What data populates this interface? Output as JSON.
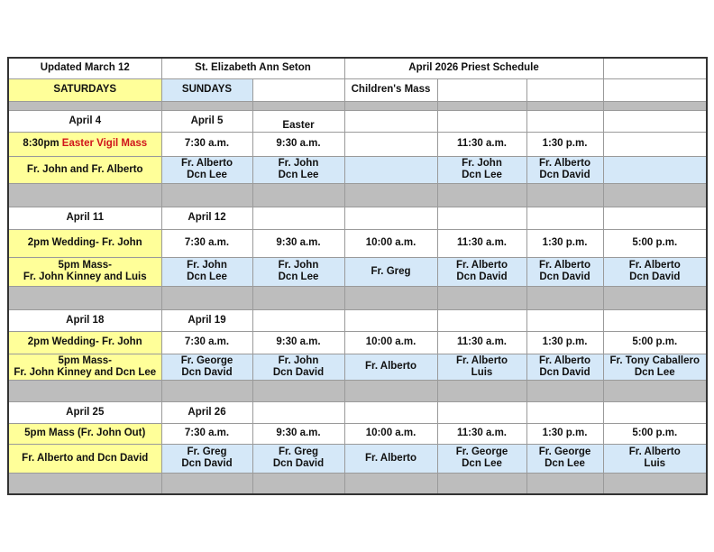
{
  "header": {
    "updated": "Updated March 12",
    "parish": "St. Elizabeth Ann Seton",
    "title": "April 2026 Priest Schedule"
  },
  "labels": [
    "SATURDAYS",
    "SUNDAYS",
    "",
    "Children's Mass",
    "",
    "",
    ""
  ],
  "colors": {
    "accent_red": "#d0141b",
    "saturday_yellow": "#ffff99",
    "priest_blue": "#d5e8f8",
    "separator_gray": "#bdbdbd"
  },
  "weeks": [
    {
      "dates": [
        "April 4",
        "April 5",
        "Easter",
        "",
        "",
        "",
        ""
      ],
      "times": [
        "8:30pm |Easter Vigil Mass",
        "7:30 a.m.",
        "9:30 a.m.",
        "",
        "11:30 a.m.",
        "1:30 p.m.",
        ""
      ],
      "priests": [
        "Fr. John and Fr. Alberto",
        "Fr. Alberto\nDcn Lee",
        "Fr. John\nDcn Lee",
        "",
        "Fr. John\nDcn Lee",
        "Fr. Alberto\nDcn David",
        ""
      ]
    },
    {
      "dates": [
        "April 11",
        "April 12",
        "",
        "",
        "",
        "",
        ""
      ],
      "times": [
        "2pm Wedding- Fr. John",
        "7:30 a.m.",
        "9:30 a.m.",
        "10:00 a.m.",
        "11:30 a.m.",
        "1:30 p.m.",
        "5:00 p.m."
      ],
      "priests": [
        "5pm Mass-\nFr. John Kinney and Luis",
        "Fr. John\nDcn Lee",
        "Fr. John\nDcn Lee",
        "Fr. Greg",
        "Fr. Alberto\nDcn David",
        "Fr. Alberto\nDcn David",
        "Fr. Alberto\nDcn David"
      ]
    },
    {
      "dates": [
        "April 18",
        "April 19",
        "",
        "",
        "",
        "",
        ""
      ],
      "times": [
        "2pm Wedding- Fr. John",
        "7:30 a.m.",
        "9:30 a.m.",
        "10:00 a.m.",
        "11:30 a.m.",
        "1:30 p.m.",
        "5:00 p.m."
      ],
      "priests": [
        "5pm Mass-\nFr. John Kinney and Dcn Lee",
        "Fr. George\nDcn David",
        "Fr. John\nDcn David",
        "Fr. Alberto",
        "Fr. Alberto\nLuis",
        "Fr. Alberto\nDcn David",
        "Fr. Tony Caballero\nDcn Lee"
      ]
    },
    {
      "dates": [
        "April 25",
        "April 26",
        "",
        "",
        "",
        "",
        ""
      ],
      "times": [
        "5pm Mass (Fr. John Out)",
        "7:30 a.m.",
        "9:30 a.m.",
        "10:00 a.m.",
        "11:30 a.m.",
        "1:30 p.m.",
        "5:00 p.m."
      ],
      "priests": [
        " Fr. Alberto and Dcn David",
        "Fr.  Greg\nDcn David",
        "Fr. Greg\nDcn David",
        "Fr. Alberto",
        "Fr. George\nDcn Lee",
        "Fr. George\nDcn Lee",
        "Fr. Alberto\nLuis"
      ]
    }
  ]
}
